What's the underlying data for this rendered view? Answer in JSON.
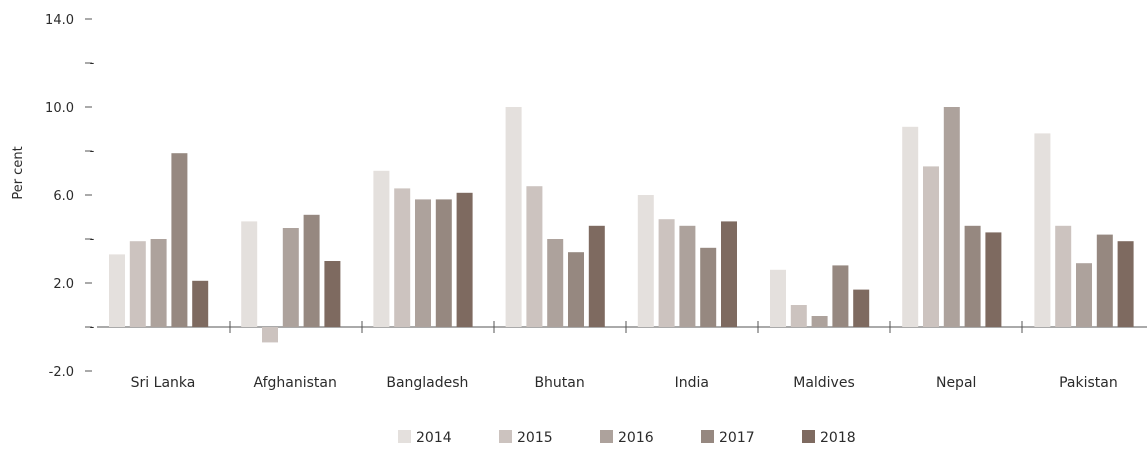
{
  "chart_data": {
    "type": "bar",
    "title": "",
    "xlabel": "",
    "ylabel": "Per cent",
    "ylim": [
      -2.0,
      14.0
    ],
    "yticks": [
      -2.0,
      0,
      2.0,
      4.0,
      6.0,
      8.0,
      10.0,
      12.0,
      14.0
    ],
    "ytick_labels": [
      "-2.0",
      "-",
      "2.0",
      "-",
      "6.0",
      "-",
      "10.0",
      "-",
      "14.0"
    ],
    "grid": false,
    "legend_position": "bottom",
    "categories": [
      "Sri Lanka",
      "Afghanistan",
      "Bangladesh",
      "Bhutan",
      "India",
      "Maldives",
      "Nepal",
      "Pakistan"
    ],
    "series": [
      {
        "name": "2014",
        "color": "#e4e0dd",
        "values": [
          3.3,
          4.8,
          7.1,
          10.0,
          6.0,
          2.6,
          9.1,
          8.8
        ]
      },
      {
        "name": "2015",
        "color": "#ccc3bf",
        "values": [
          3.9,
          -0.7,
          6.3,
          6.4,
          4.9,
          1.0,
          7.3,
          4.6
        ]
      },
      {
        "name": "2016",
        "color": "#ada29c",
        "values": [
          4.0,
          4.5,
          5.8,
          4.0,
          4.6,
          0.5,
          10.0,
          2.9
        ]
      },
      {
        "name": "2017",
        "color": "#968880",
        "values": [
          7.9,
          5.1,
          5.8,
          3.4,
          3.6,
          2.8,
          4.6,
          4.2
        ]
      },
      {
        "name": "2018",
        "color": "#7e6a60",
        "values": [
          2.1,
          3.0,
          6.1,
          4.6,
          4.8,
          1.7,
          4.3,
          3.9
        ]
      }
    ]
  }
}
